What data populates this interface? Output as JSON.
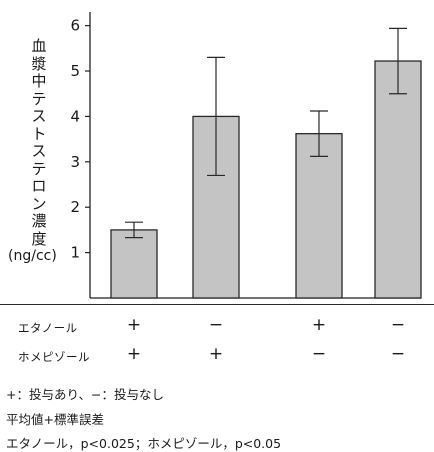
{
  "chart_data": {
    "type": "bar",
    "ylabel": "血漿中テストステロン濃度",
    "yunit": "(ng/cc)",
    "ylim": [
      0,
      6.3
    ],
    "yticks": [
      "1",
      "2",
      "3",
      "4",
      "5",
      "6"
    ],
    "values": [
      1.5,
      4.0,
      3.62,
      5.22
    ],
    "errors": [
      0.17,
      1.3,
      0.5,
      0.72
    ],
    "bar_color": "#c4c4c4",
    "groups": [
      {
        "label": "エタノール",
        "marks": [
          "+",
          "−",
          "+",
          "−"
        ]
      },
      {
        "label": "ホメピゾール",
        "marks": [
          "+",
          "+",
          "−",
          "−"
        ]
      }
    ]
  },
  "footnotes": [
    "+：投与あり、−：投与なし",
    "平均値+標準誤差",
    "エタノール，p<0.025；ホメピゾール，p<0.05"
  ]
}
